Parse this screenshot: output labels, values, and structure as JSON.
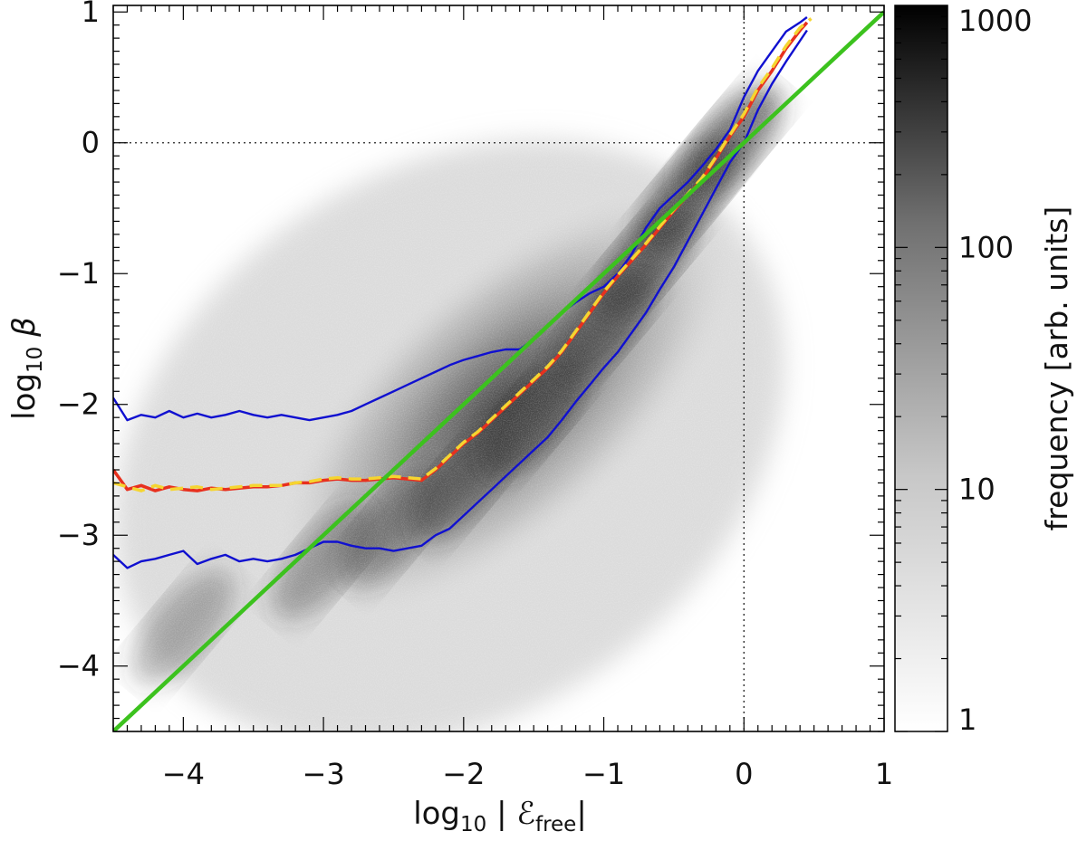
{
  "chart_data": {
    "type": "heatmap",
    "title": "",
    "xlabel": {
      "prefix": "log",
      "sub": "10",
      "body": " | ℰ",
      "sub2": "free",
      "suffix": "|"
    },
    "ylabel": {
      "prefix": "log",
      "sub": "10",
      "symbol": " β"
    },
    "xlim": [
      -4.5,
      1.0
    ],
    "ylim": [
      -4.5,
      1.05
    ],
    "x_ticks": [
      -4,
      -3,
      -2,
      -1,
      0,
      1
    ],
    "x_tick_labels": [
      "−4",
      "−3",
      "−2",
      "−1",
      "0",
      "1"
    ],
    "y_ticks": [
      -4,
      -3,
      -2,
      -1,
      0,
      1
    ],
    "y_tick_labels": [
      "−4",
      "−3",
      "−2",
      "−1",
      "0",
      "1"
    ],
    "grid": false,
    "reference_lines": {
      "x": 0,
      "y": 0,
      "style": "dotted"
    },
    "colorbar": {
      "label": "frequency [arb. units]",
      "scale": "log",
      "range": [
        1,
        1000
      ],
      "ticks": [
        1,
        10,
        100,
        1000
      ],
      "tick_labels": [
        "1",
        "10",
        "100",
        "1000"
      ],
      "colormap": "white-to-black"
    },
    "density_ridge": {
      "x": [
        -4.0,
        -3.0,
        -2.5,
        -2.0,
        -1.5,
        -1.0,
        -0.7,
        -0.4,
        -0.1
      ],
      "y": [
        -3.7,
        -3.2,
        -2.95,
        -2.6,
        -2.1,
        -1.4,
        -0.9,
        -0.4,
        0.0
      ]
    },
    "series": [
      {
        "name": "",
        "color": "#1010d0",
        "style": "solid",
        "x": [
          -4.5,
          -4.4,
          -4.3,
          -4.2,
          -4.1,
          -4.0,
          -3.9,
          -3.8,
          -3.7,
          -3.6,
          -3.5,
          -3.4,
          -3.3,
          -3.2,
          -3.1,
          -3.0,
          -2.9,
          -2.8,
          -2.7,
          -2.6,
          -2.5,
          -2.4,
          -2.3,
          -2.2,
          -2.1,
          -2.0,
          -1.9,
          -1.8,
          -1.7,
          -1.6,
          -1.5,
          -1.4,
          -1.3,
          -1.2,
          -1.1,
          -1.0,
          -0.9,
          -0.8,
          -0.7,
          -0.6,
          -0.5,
          -0.4,
          -0.3,
          -0.2,
          -0.1,
          0.0,
          0.1,
          0.2,
          0.3,
          0.4,
          0.45
        ],
        "y": [
          -1.95,
          -2.12,
          -2.08,
          -2.1,
          -2.05,
          -2.1,
          -2.07,
          -2.1,
          -2.08,
          -2.05,
          -2.08,
          -2.1,
          -2.08,
          -2.1,
          -2.12,
          -2.1,
          -2.08,
          -2.05,
          -2.0,
          -1.95,
          -1.9,
          -1.85,
          -1.8,
          -1.75,
          -1.7,
          -1.66,
          -1.63,
          -1.6,
          -1.58,
          -1.58,
          -1.5,
          -1.4,
          -1.3,
          -1.22,
          -1.15,
          -1.1,
          -1.0,
          -0.85,
          -0.65,
          -0.5,
          -0.4,
          -0.3,
          -0.18,
          -0.05,
          0.1,
          0.35,
          0.55,
          0.7,
          0.85,
          0.92,
          0.96
        ]
      },
      {
        "name": "",
        "color": "#1010d0",
        "style": "solid",
        "x": [
          -4.5,
          -4.4,
          -4.3,
          -4.2,
          -4.1,
          -4.0,
          -3.9,
          -3.8,
          -3.7,
          -3.6,
          -3.5,
          -3.4,
          -3.3,
          -3.2,
          -3.1,
          -3.0,
          -2.9,
          -2.8,
          -2.7,
          -2.6,
          -2.5,
          -2.4,
          -2.3,
          -2.2,
          -2.1,
          -2.0,
          -1.9,
          -1.8,
          -1.7,
          -1.6,
          -1.5,
          -1.4,
          -1.3,
          -1.2,
          -1.1,
          -1.0,
          -0.9,
          -0.8,
          -0.7,
          -0.6,
          -0.5,
          -0.4,
          -0.3,
          -0.2,
          -0.1,
          0.0,
          0.1,
          0.2,
          0.3,
          0.4,
          0.45
        ],
        "y": [
          -3.15,
          -3.25,
          -3.2,
          -3.18,
          -3.15,
          -3.12,
          -3.22,
          -3.18,
          -3.15,
          -3.2,
          -3.18,
          -3.2,
          -3.18,
          -3.15,
          -3.1,
          -3.05,
          -3.05,
          -3.08,
          -3.1,
          -3.1,
          -3.12,
          -3.1,
          -3.08,
          -3.0,
          -2.95,
          -2.85,
          -2.75,
          -2.65,
          -2.55,
          -2.45,
          -2.35,
          -2.25,
          -2.12,
          -1.98,
          -1.85,
          -1.72,
          -1.6,
          -1.45,
          -1.3,
          -1.12,
          -0.95,
          -0.75,
          -0.55,
          -0.35,
          -0.15,
          0.0,
          0.25,
          0.45,
          0.62,
          0.78,
          0.86
        ]
      },
      {
        "name": "",
        "color": "#e8301e",
        "style": "solid",
        "x": [
          -4.5,
          -4.4,
          -4.3,
          -4.2,
          -4.1,
          -4.0,
          -3.9,
          -3.8,
          -3.7,
          -3.6,
          -3.5,
          -3.4,
          -3.3,
          -3.2,
          -3.1,
          -3.0,
          -2.9,
          -2.8,
          -2.7,
          -2.6,
          -2.5,
          -2.4,
          -2.3,
          -2.2,
          -2.1,
          -2.0,
          -1.9,
          -1.8,
          -1.7,
          -1.6,
          -1.5,
          -1.4,
          -1.3,
          -1.2,
          -1.1,
          -1.0,
          -0.9,
          -0.8,
          -0.7,
          -0.6,
          -0.5,
          -0.4,
          -0.3,
          -0.2,
          -0.1,
          0.0,
          0.1,
          0.2,
          0.3,
          0.4,
          0.45
        ],
        "y": [
          -2.5,
          -2.65,
          -2.62,
          -2.66,
          -2.63,
          -2.65,
          -2.66,
          -2.64,
          -2.65,
          -2.64,
          -2.63,
          -2.63,
          -2.62,
          -2.6,
          -2.6,
          -2.58,
          -2.57,
          -2.58,
          -2.58,
          -2.57,
          -2.56,
          -2.57,
          -2.58,
          -2.5,
          -2.4,
          -2.3,
          -2.22,
          -2.12,
          -2.02,
          -1.92,
          -1.82,
          -1.72,
          -1.6,
          -1.45,
          -1.3,
          -1.15,
          -1.02,
          -0.9,
          -0.78,
          -0.65,
          -0.52,
          -0.4,
          -0.28,
          -0.12,
          0.05,
          0.2,
          0.4,
          0.55,
          0.72,
          0.86,
          0.92
        ]
      },
      {
        "name": "",
        "color": "#f5d530",
        "style": "dashed",
        "x": [
          -4.5,
          -4.4,
          -4.3,
          -4.2,
          -4.1,
          -4.0,
          -3.9,
          -3.8,
          -3.7,
          -3.6,
          -3.5,
          -3.4,
          -3.3,
          -3.2,
          -3.1,
          -3.0,
          -2.9,
          -2.8,
          -2.7,
          -2.6,
          -2.5,
          -2.4,
          -2.3,
          -2.2,
          -2.1,
          -2.0,
          -1.9,
          -1.8,
          -1.7,
          -1.6,
          -1.5,
          -1.4,
          -1.3,
          -1.2,
          -1.1,
          -1.0,
          -0.9,
          -0.8,
          -0.7,
          -0.6,
          -0.5,
          -0.4,
          -0.3,
          -0.2,
          -0.1,
          0.0,
          0.1,
          0.2,
          0.3,
          0.4,
          0.48
        ],
        "y": [
          -2.6,
          -2.63,
          -2.66,
          -2.62,
          -2.65,
          -2.64,
          -2.63,
          -2.65,
          -2.64,
          -2.63,
          -2.62,
          -2.62,
          -2.62,
          -2.6,
          -2.59,
          -2.57,
          -2.56,
          -2.57,
          -2.57,
          -2.56,
          -2.55,
          -2.56,
          -2.57,
          -2.49,
          -2.39,
          -2.29,
          -2.21,
          -2.11,
          -2.01,
          -1.91,
          -1.81,
          -1.71,
          -1.59,
          -1.44,
          -1.29,
          -1.14,
          -1.01,
          -0.89,
          -0.77,
          -0.64,
          -0.51,
          -0.39,
          -0.27,
          -0.11,
          0.06,
          0.22,
          0.42,
          0.57,
          0.74,
          0.88,
          0.95
        ]
      },
      {
        "name": "",
        "color": "#3cc21e",
        "style": "solid",
        "x": [
          -4.5,
          1.0
        ],
        "y": [
          -4.5,
          1.0
        ]
      }
    ]
  }
}
